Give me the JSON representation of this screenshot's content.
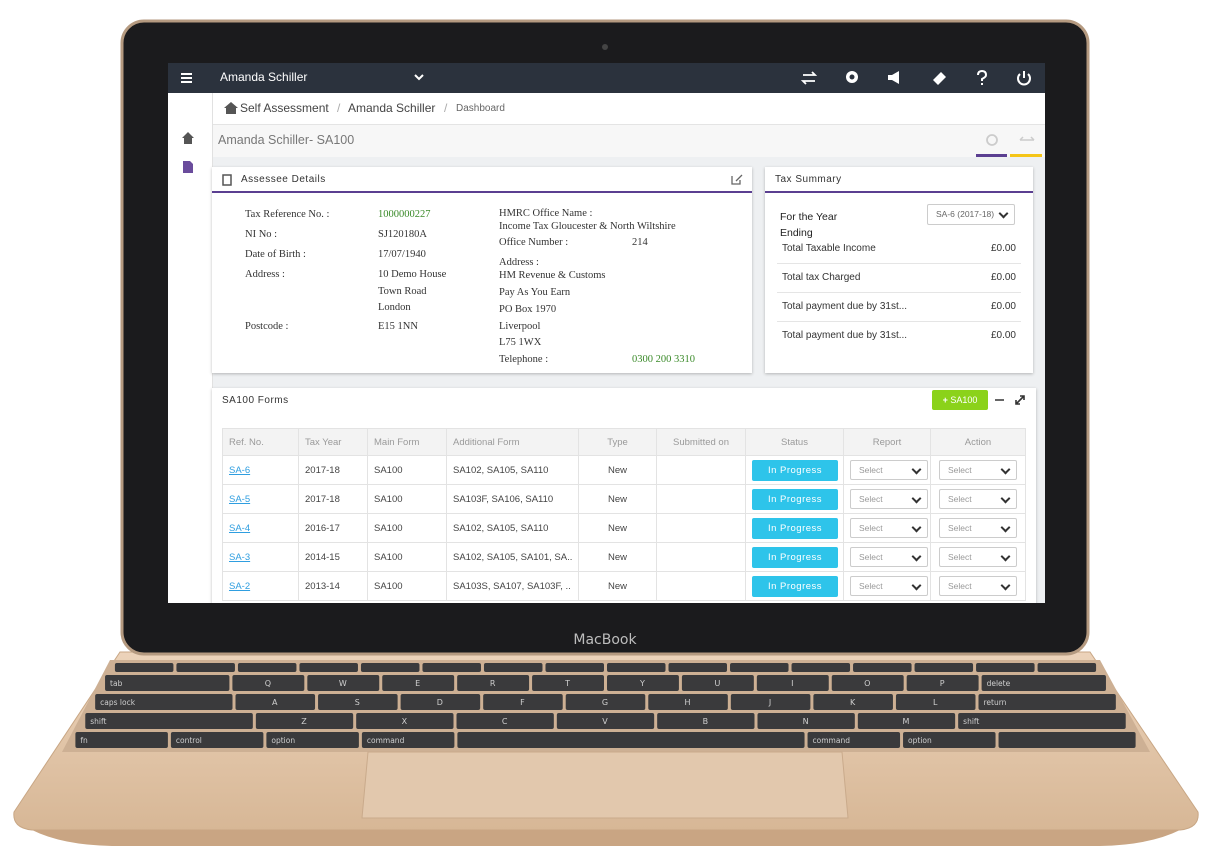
{
  "topbar": {
    "user": "Amanda Schiller"
  },
  "breadcrumb": [
    "Self Assessment",
    "Amanda Schiller",
    "Dashboard"
  ],
  "page_title": "Amanda Schiller- SA100",
  "assessee": {
    "title": "Assessee Details",
    "left": [
      {
        "label": "Tax Reference No. :",
        "lines": [
          "1000000227"
        ]
      },
      {
        "label": "NI No :",
        "lines": [
          "SJ120180A"
        ]
      },
      {
        "label": "Date of Birth :",
        "lines": [
          "17/07/1940"
        ]
      },
      {
        "label": "Address :",
        "lines": [
          "10 Demo House",
          "Town Road",
          "London"
        ]
      },
      {
        "label": "Postcode :",
        "lines": [
          "E15 1NN"
        ]
      }
    ],
    "right": [
      {
        "label": "HMRC Office Name :",
        "lines": [
          "Income Tax Gloucester & North Wiltshire"
        ]
      },
      {
        "label": "Office Number :",
        "lines": [
          "214"
        ]
      },
      {
        "label": "Address :",
        "lines": [
          "HM Revenue & Customs",
          "Pay As You Earn",
          "PO Box 1970",
          "Liverpool",
          "L75 1WX"
        ]
      },
      {
        "label": "Telephone :",
        "lines": [
          "0300 200 3310"
        ]
      }
    ]
  },
  "tax_summary": {
    "title": "Tax Summary",
    "year_label": "For the Year Ending",
    "year_select": "SA-6 (2017-18)",
    "rows": [
      [
        "Total Taxable Income",
        "£0.00"
      ],
      [
        "Total tax Charged",
        "£0.00"
      ],
      [
        "Total payment due by 31st...",
        "£0.00"
      ],
      [
        "Total payment due by 31st...",
        "£0.00"
      ]
    ]
  },
  "forms": {
    "title": "SA100 Forms",
    "add_button": "SA100",
    "headers": [
      "Ref. No.",
      "Tax Year",
      "Main Form",
      "Additional Form",
      "Type",
      "Submitted on",
      "Status",
      "Report",
      "Action"
    ],
    "rows": [
      [
        "SA-6",
        "2017-18",
        "SA100",
        "SA102, SA105, SA110",
        "New",
        null,
        "In Progress",
        "Select",
        "Select"
      ],
      [
        "SA-5",
        "2017-18",
        "SA100",
        "SA103F, SA106, SA110",
        "New",
        null,
        "In Progress",
        "Select",
        "Select"
      ],
      [
        "SA-4",
        "2016-17",
        "SA100",
        "SA102, SA105, SA110",
        "New",
        null,
        "In Progress",
        "Select",
        "Select"
      ],
      [
        "SA-3",
        "2014-15",
        "SA100",
        "SA102, SA105, SA101, SA..",
        "New",
        null,
        "In Progress",
        "Select",
        "Select"
      ],
      [
        "SA-2",
        "2013-14",
        "SA100",
        "SA103S, SA107, SA103F, ..",
        "New",
        null,
        "In Progress",
        "Select",
        "Select"
      ]
    ]
  },
  "laptop": {
    "brand": "MacBook",
    "keyboard": [
      [
        "tab",
        "Q",
        "W",
        "E",
        "R",
        "T",
        "Y",
        "U",
        "I",
        "O",
        "P",
        "delete"
      ],
      [
        "caps lock",
        "A",
        "S",
        "D",
        "F",
        "G",
        "H",
        "J",
        "K",
        "L",
        "return"
      ],
      [
        "shift",
        "Z",
        "X",
        "C",
        "V",
        "B",
        "N",
        "M",
        "shift"
      ],
      [
        "fn",
        "control",
        "option",
        "command",
        "command",
        "option"
      ]
    ]
  }
}
